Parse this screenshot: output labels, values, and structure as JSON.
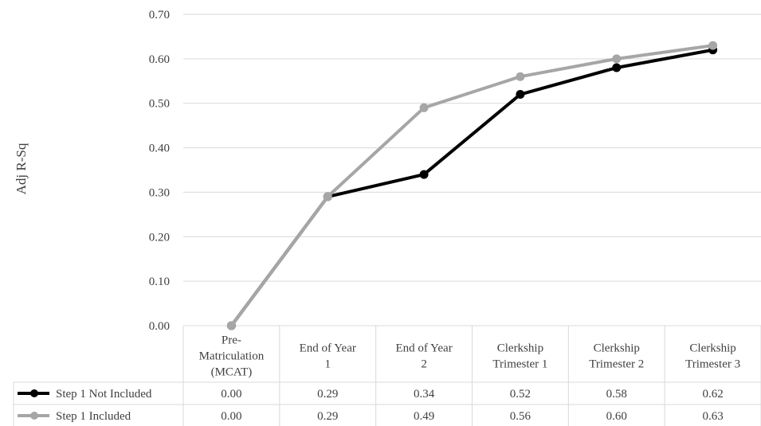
{
  "chart_data": {
    "type": "line",
    "ylabel": "Adj R-Sq",
    "ylim": [
      0,
      0.7
    ],
    "y_ticks": [
      "0.00",
      "0.10",
      "0.20",
      "0.30",
      "0.40",
      "0.50",
      "0.60",
      "0.70"
    ],
    "categories": [
      [
        "Pre-",
        "Matriculation",
        "(MCAT)"
      ],
      [
        "End of Year",
        "1"
      ],
      [
        "End of Year",
        "2"
      ],
      [
        "Clerkship",
        "Trimester 1"
      ],
      [
        "Clerkship",
        "Trimester 2"
      ],
      [
        "Clerkship",
        "Trimester 3"
      ]
    ],
    "series": [
      {
        "name": "Step 1 Not Included",
        "color": "#000000",
        "values": [
          0.0,
          0.29,
          0.34,
          0.52,
          0.58,
          0.62
        ],
        "labels": [
          "0.00",
          "0.29",
          "0.34",
          "0.52",
          "0.58",
          "0.62"
        ]
      },
      {
        "name": "Step 1 Included",
        "color": "#a6a6a6",
        "values": [
          0.0,
          0.29,
          0.49,
          0.56,
          0.6,
          0.63
        ],
        "labels": [
          "0.00",
          "0.29",
          "0.49",
          "0.56",
          "0.60",
          "0.63"
        ]
      }
    ],
    "grid": true,
    "legend": "data-table"
  }
}
